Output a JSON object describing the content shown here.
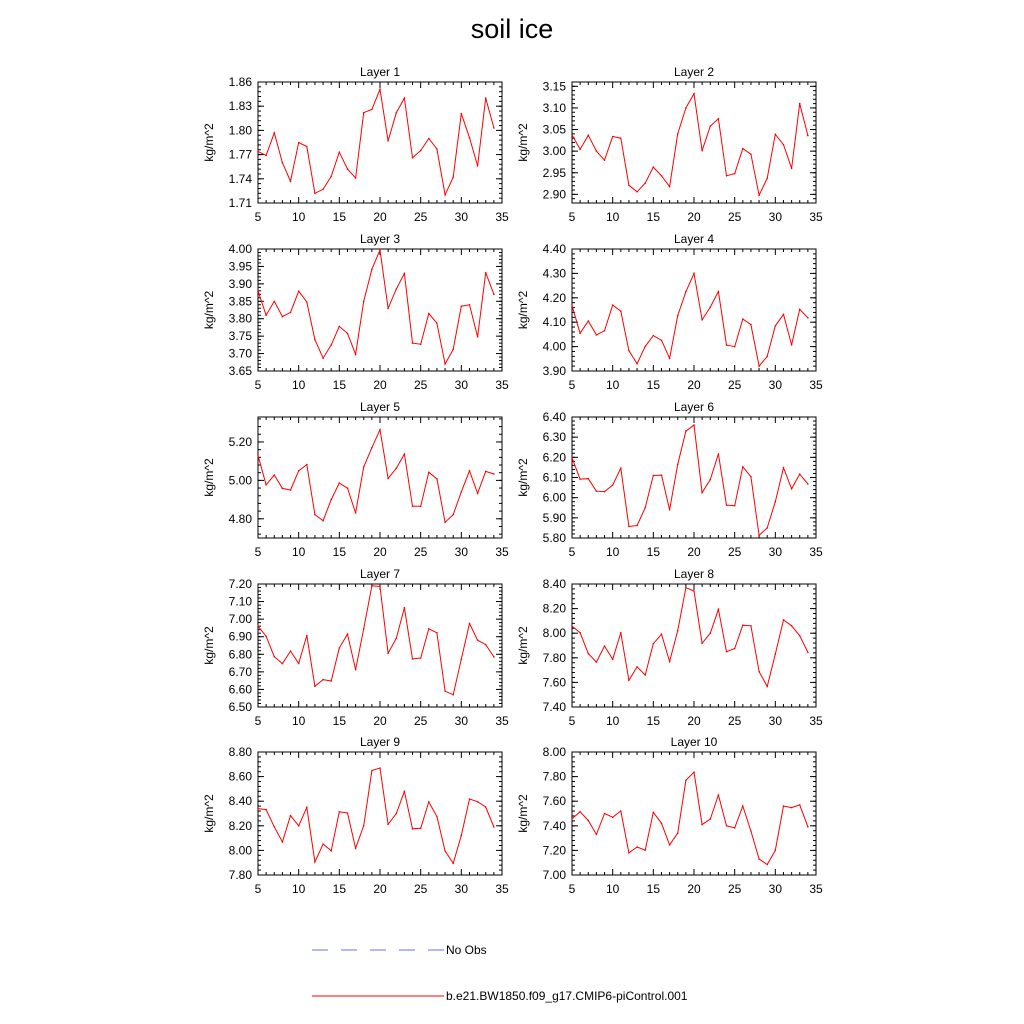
{
  "figure": {
    "title": "soil ice"
  },
  "colors": {
    "model_line": "#ff0000",
    "obs_line": "#6c6cff",
    "axis": "#000000"
  },
  "legend": {
    "entries": [
      {
        "label": "No Obs",
        "style": "dashed",
        "color": "#6c6cff"
      },
      {
        "label": "b.e21.BW1850.f09_g17.CMIP6-piControl.001",
        "style": "solid",
        "color": "#ff0000"
      }
    ]
  },
  "chart_data": [
    {
      "type": "line",
      "title": "Layer 1",
      "ylabel": "kg/m^2",
      "xlim": [
        5,
        35
      ],
      "ylim": [
        1.71,
        1.86
      ],
      "xticks": [
        "5",
        "10",
        "15",
        "20",
        "25",
        "30",
        "35"
      ],
      "yticks": [
        "1.71",
        "1.74",
        "1.77",
        "1.80",
        "1.83",
        "1.86"
      ],
      "x": [
        5,
        6,
        7,
        8,
        9,
        10,
        11,
        12,
        13,
        14,
        15,
        16,
        17,
        18,
        19,
        20,
        21,
        22,
        23,
        24,
        25,
        26,
        27,
        28,
        29,
        30,
        31,
        32,
        33,
        34
      ],
      "series": [
        {
          "values": [
            1.774,
            1.769,
            1.797,
            1.76,
            1.737,
            1.785,
            1.78,
            1.722,
            1.727,
            1.743,
            1.773,
            1.752,
            1.741,
            1.822,
            1.826,
            1.851,
            1.787,
            1.822,
            1.84,
            1.766,
            1.775,
            1.79,
            1.777,
            1.72,
            1.742,
            1.821,
            1.791,
            1.756,
            1.84,
            1.803
          ]
        }
      ]
    },
    {
      "type": "line",
      "title": "Layer 2",
      "ylabel": "kg/m^2",
      "xlim": [
        5,
        35
      ],
      "ylim": [
        2.88,
        3.16
      ],
      "xticks": [
        "5",
        "10",
        "15",
        "20",
        "25",
        "30",
        "35"
      ],
      "yticks": [
        "2.90",
        "2.95",
        "3.00",
        "3.05",
        "3.10",
        "3.15"
      ],
      "x": [
        5,
        6,
        7,
        8,
        9,
        10,
        11,
        12,
        13,
        14,
        15,
        16,
        17,
        18,
        19,
        20,
        21,
        22,
        23,
        24,
        25,
        26,
        27,
        28,
        29,
        30,
        31,
        32,
        33,
        34
      ],
      "series": [
        {
          "values": [
            3.038,
            3.004,
            3.037,
            3.0,
            2.979,
            3.034,
            3.03,
            2.921,
            2.906,
            2.926,
            2.963,
            2.943,
            2.918,
            3.04,
            3.1,
            3.133,
            3.001,
            3.058,
            3.075,
            2.943,
            2.948,
            3.006,
            2.993,
            2.898,
            2.937,
            3.039,
            3.015,
            2.96,
            3.11,
            3.036
          ]
        }
      ]
    },
    {
      "type": "line",
      "title": "Layer 3",
      "ylabel": "kg/m^2",
      "xlim": [
        5,
        35
      ],
      "ylim": [
        3.65,
        4.0
      ],
      "xticks": [
        "5",
        "10",
        "15",
        "20",
        "25",
        "30",
        "35"
      ],
      "yticks": [
        "3.65",
        "3.70",
        "3.75",
        "3.80",
        "3.85",
        "3.90",
        "3.95",
        "4.00"
      ],
      "x": [
        5,
        6,
        7,
        8,
        9,
        10,
        11,
        12,
        13,
        14,
        15,
        16,
        17,
        18,
        19,
        20,
        21,
        22,
        23,
        24,
        25,
        26,
        27,
        28,
        29,
        30,
        31,
        32,
        33,
        34
      ],
      "series": [
        {
          "values": [
            3.88,
            3.81,
            3.85,
            3.806,
            3.818,
            3.879,
            3.848,
            3.74,
            3.687,
            3.725,
            3.778,
            3.758,
            3.698,
            3.85,
            3.942,
            3.997,
            3.83,
            3.885,
            3.93,
            3.73,
            3.727,
            3.815,
            3.787,
            3.67,
            3.712,
            3.836,
            3.84,
            3.748,
            3.932,
            3.87
          ]
        }
      ]
    },
    {
      "type": "line",
      "title": "Layer 4",
      "ylabel": "kg/m^2",
      "xlim": [
        5,
        35
      ],
      "ylim": [
        3.9,
        4.4
      ],
      "xticks": [
        "5",
        "10",
        "15",
        "20",
        "25",
        "30",
        "35"
      ],
      "yticks": [
        "3.90",
        "4.00",
        "4.10",
        "4.20",
        "4.30",
        "4.40"
      ],
      "x": [
        5,
        6,
        7,
        8,
        9,
        10,
        11,
        12,
        13,
        14,
        15,
        16,
        17,
        18,
        19,
        20,
        21,
        22,
        23,
        24,
        25,
        26,
        27,
        28,
        29,
        30,
        31,
        32,
        33,
        34
      ],
      "series": [
        {
          "values": [
            4.168,
            4.055,
            4.105,
            4.048,
            4.065,
            4.17,
            4.145,
            3.983,
            3.93,
            4.001,
            4.045,
            4.026,
            3.952,
            4.127,
            4.225,
            4.3,
            4.11,
            4.162,
            4.226,
            4.006,
            4.0,
            4.113,
            4.09,
            3.92,
            3.96,
            4.085,
            4.132,
            4.007,
            4.153,
            4.118
          ]
        }
      ]
    },
    {
      "type": "line",
      "title": "Layer 5",
      "ylabel": "kg/m^2",
      "xlim": [
        5,
        35
      ],
      "ylim": [
        4.7,
        5.33
      ],
      "xticks": [
        "5",
        "10",
        "15",
        "20",
        "25",
        "30",
        "35"
      ],
      "yticks": [
        "4.80",
        "5.00",
        "5.20"
      ],
      "x": [
        5,
        6,
        7,
        8,
        9,
        10,
        11,
        12,
        13,
        14,
        15,
        16,
        17,
        18,
        19,
        20,
        21,
        22,
        23,
        24,
        25,
        26,
        27,
        28,
        29,
        30,
        31,
        32,
        33,
        34
      ],
      "series": [
        {
          "values": [
            5.13,
            4.977,
            5.028,
            4.958,
            4.95,
            5.05,
            5.082,
            4.822,
            4.79,
            4.9,
            4.986,
            4.96,
            4.83,
            5.07,
            5.17,
            5.264,
            5.01,
            5.063,
            5.137,
            4.865,
            4.865,
            5.042,
            5.008,
            4.782,
            4.822,
            4.94,
            5.05,
            4.932,
            5.047,
            5.033
          ]
        }
      ]
    },
    {
      "type": "line",
      "title": "Layer 6",
      "ylabel": "kg/m^2",
      "xlim": [
        5,
        35
      ],
      "ylim": [
        5.8,
        6.4
      ],
      "xticks": [
        "5",
        "10",
        "15",
        "20",
        "25",
        "30",
        "35"
      ],
      "yticks": [
        "5.80",
        "5.90",
        "6.00",
        "6.10",
        "6.20",
        "6.30",
        "6.40"
      ],
      "x": [
        5,
        6,
        7,
        8,
        9,
        10,
        11,
        12,
        13,
        14,
        15,
        16,
        17,
        18,
        19,
        20,
        21,
        22,
        23,
        24,
        25,
        26,
        27,
        28,
        29,
        30,
        31,
        32,
        33,
        34
      ],
      "series": [
        {
          "values": [
            6.198,
            6.092,
            6.094,
            6.032,
            6.03,
            6.063,
            6.146,
            5.857,
            5.862,
            5.95,
            6.11,
            6.112,
            5.94,
            6.165,
            6.33,
            6.36,
            6.025,
            6.09,
            6.217,
            5.963,
            5.96,
            6.153,
            6.104,
            5.813,
            5.85,
            5.98,
            6.148,
            6.044,
            6.117,
            6.068
          ]
        }
      ]
    },
    {
      "type": "line",
      "title": "Layer 7",
      "ylabel": "kg/m^2",
      "xlim": [
        5,
        35
      ],
      "ylim": [
        6.5,
        7.2
      ],
      "xticks": [
        "5",
        "10",
        "15",
        "20",
        "25",
        "30",
        "35"
      ],
      "yticks": [
        "6.50",
        "6.60",
        "6.70",
        "6.80",
        "6.90",
        "7.00",
        "7.10",
        "7.20"
      ],
      "x": [
        5,
        6,
        7,
        8,
        9,
        10,
        11,
        12,
        13,
        14,
        15,
        16,
        17,
        18,
        19,
        20,
        21,
        22,
        23,
        24,
        25,
        26,
        27,
        28,
        29,
        30,
        31,
        32,
        33,
        34
      ],
      "series": [
        {
          "values": [
            6.96,
            6.903,
            6.786,
            6.747,
            6.818,
            6.748,
            6.907,
            6.618,
            6.656,
            6.648,
            6.836,
            6.915,
            6.712,
            6.945,
            7.19,
            7.186,
            6.806,
            6.891,
            7.065,
            6.773,
            6.779,
            6.945,
            6.922,
            6.59,
            6.57,
            6.772,
            6.975,
            6.88,
            6.855,
            6.785
          ]
        }
      ]
    },
    {
      "type": "line",
      "title": "Layer 8",
      "ylabel": "kg/m^2",
      "xlim": [
        5,
        35
      ],
      "ylim": [
        7.4,
        8.4
      ],
      "xticks": [
        "5",
        "10",
        "15",
        "20",
        "25",
        "30",
        "35"
      ],
      "yticks": [
        "7.40",
        "7.60",
        "7.80",
        "8.00",
        "8.20",
        "8.40"
      ],
      "x": [
        5,
        6,
        7,
        8,
        9,
        10,
        11,
        12,
        13,
        14,
        15,
        16,
        17,
        18,
        19,
        20,
        21,
        22,
        23,
        24,
        25,
        26,
        27,
        28,
        29,
        30,
        31,
        32,
        33,
        34
      ],
      "series": [
        {
          "values": [
            8.058,
            8.004,
            7.834,
            7.765,
            7.896,
            7.788,
            8.004,
            7.617,
            7.726,
            7.66,
            7.915,
            7.992,
            7.77,
            8.02,
            8.37,
            8.343,
            7.918,
            8.0,
            8.194,
            7.85,
            7.876,
            8.065,
            8.06,
            7.688,
            7.567,
            7.83,
            8.108,
            8.06,
            7.98,
            7.844
          ]
        }
      ]
    },
    {
      "type": "line",
      "title": "Layer 9",
      "ylabel": "kg/m^2",
      "xlim": [
        5,
        35
      ],
      "ylim": [
        7.8,
        8.8
      ],
      "xticks": [
        "5",
        "10",
        "15",
        "20",
        "25",
        "30",
        "35"
      ],
      "yticks": [
        "7.80",
        "8.00",
        "8.20",
        "8.40",
        "8.60",
        "8.80"
      ],
      "x": [
        5,
        6,
        7,
        8,
        9,
        10,
        11,
        12,
        13,
        14,
        15,
        16,
        17,
        18,
        19,
        20,
        21,
        22,
        23,
        24,
        25,
        26,
        27,
        28,
        29,
        30,
        31,
        32,
        33,
        34
      ],
      "series": [
        {
          "values": [
            8.34,
            8.332,
            8.192,
            8.068,
            8.283,
            8.2,
            8.35,
            7.906,
            8.052,
            7.997,
            8.314,
            8.304,
            8.018,
            8.2,
            8.65,
            8.67,
            8.212,
            8.3,
            8.48,
            8.176,
            8.18,
            8.394,
            8.276,
            7.995,
            7.895,
            8.121,
            8.418,
            8.396,
            8.353,
            8.19
          ]
        }
      ]
    },
    {
      "type": "line",
      "title": "Layer 10",
      "ylabel": "kg/m^2",
      "xlim": [
        5,
        35
      ],
      "ylim": [
        7.0,
        8.0
      ],
      "xticks": [
        "5",
        "10",
        "15",
        "20",
        "25",
        "30",
        "35"
      ],
      "yticks": [
        "7.00",
        "7.20",
        "7.40",
        "7.60",
        "7.80",
        "8.00"
      ],
      "x": [
        5,
        6,
        7,
        8,
        9,
        10,
        11,
        12,
        13,
        14,
        15,
        16,
        17,
        18,
        19,
        20,
        21,
        22,
        23,
        24,
        25,
        26,
        27,
        28,
        29,
        30,
        31,
        32,
        33,
        34
      ],
      "series": [
        {
          "values": [
            7.456,
            7.515,
            7.442,
            7.33,
            7.5,
            7.47,
            7.52,
            7.18,
            7.228,
            7.202,
            7.51,
            7.42,
            7.245,
            7.34,
            7.77,
            7.836,
            7.41,
            7.455,
            7.65,
            7.4,
            7.383,
            7.561,
            7.358,
            7.13,
            7.085,
            7.2,
            7.56,
            7.548,
            7.57,
            7.392
          ]
        }
      ]
    }
  ]
}
